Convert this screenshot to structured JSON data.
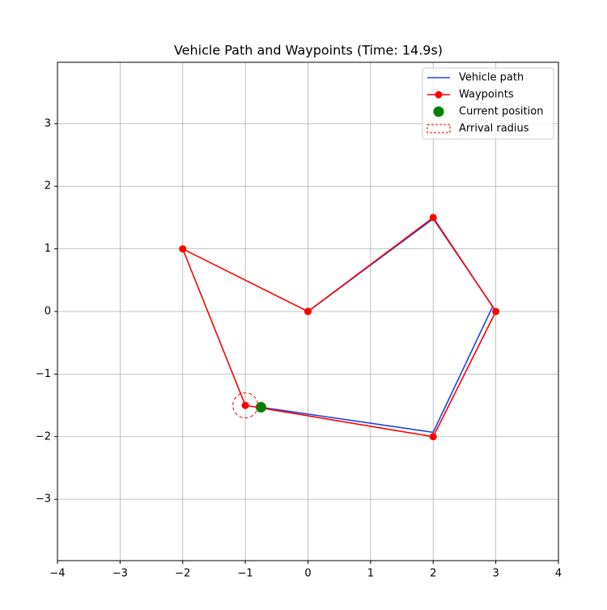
{
  "chart_data": {
    "type": "line",
    "title": "Vehicle Path and Waypoints (Time: 14.9s)",
    "xlim": [
      -4,
      4
    ],
    "ylim": [
      -3.98,
      3.98
    ],
    "xticks": [
      {
        "value": -4,
        "label": "−4"
      },
      {
        "value": -3,
        "label": "−3"
      },
      {
        "value": -2,
        "label": "−2"
      },
      {
        "value": -1,
        "label": "−1"
      },
      0,
      1,
      2,
      3,
      4
    ],
    "yticks": [
      {
        "value": -3,
        "label": "−3"
      },
      {
        "value": -2,
        "label": "−2"
      },
      {
        "value": -1,
        "label": "−1"
      },
      0,
      1,
      2,
      3
    ],
    "grid": true,
    "legend": "upper right",
    "series": [
      {
        "name": "Vehicle path",
        "color": "#1f44e0",
        "style": "line",
        "x": [
          0,
          2,
          2.95,
          2,
          -0.75
        ],
        "values": [
          0,
          1.48,
          0.08,
          -1.93,
          -1.53
        ]
      },
      {
        "name": "Waypoints",
        "color": "#ff0000",
        "style": "line-marker",
        "x": [
          0,
          2,
          3,
          2,
          -1,
          -2,
          0
        ],
        "values": [
          0,
          1.5,
          0,
          -2,
          -1.5,
          1,
          0
        ]
      },
      {
        "name": "Current position",
        "color": "#008000",
        "style": "point",
        "x": [
          -0.75
        ],
        "values": [
          -1.53
        ]
      },
      {
        "name": "Arrival radius",
        "color": "#ff0000",
        "style": "dashed-circle",
        "x": [
          -1
        ],
        "values": [
          -1.5
        ],
        "radius": 0.2
      }
    ]
  }
}
